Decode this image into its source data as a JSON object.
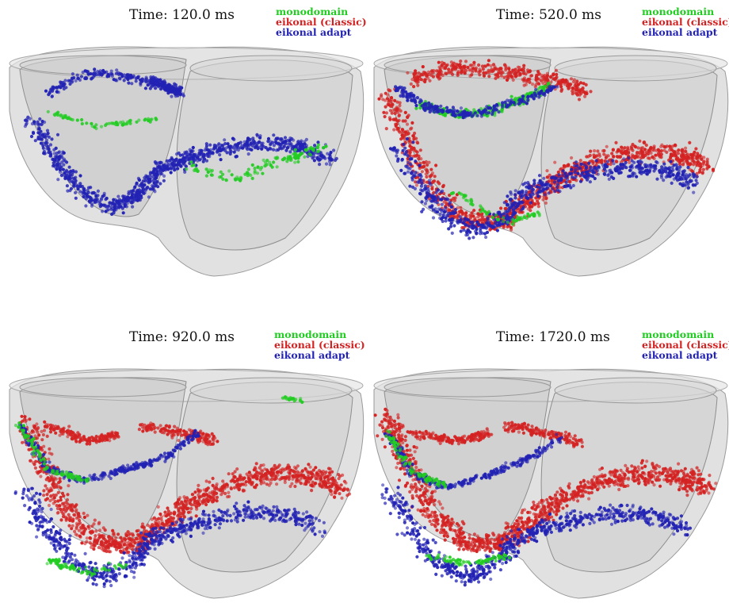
{
  "panels": [
    {
      "time": "Time: 120.0 ms"
    },
    {
      "time": "Time: 520.0 ms"
    },
    {
      "time": "Time: 920.0 ms"
    },
    {
      "time": "Time: 1720.0 ms"
    }
  ],
  "legend": {
    "monodomain": "monodomain",
    "eikonal_classic": "eikonal (classic)",
    "eikonal_adapt": "eikonal adapt"
  },
  "colors": {
    "monodomain": "#22cc22",
    "eikonal_classic": "#d42222",
    "eikonal_adapt": "#2222b4",
    "tissue": "#c8c8c8"
  }
}
